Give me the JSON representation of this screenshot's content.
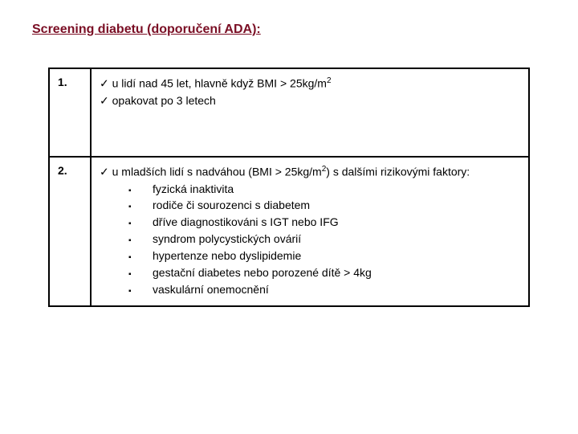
{
  "title": "Screening diabetu (doporučení ADA):",
  "rows": [
    {
      "num": "1.",
      "checks": [
        {
          "pre": "u lidí nad 45 let, hlavně když BMI > 25kg/m",
          "sup": "2",
          "post": ""
        },
        {
          "pre": "opakovat po 3 letech",
          "sup": "",
          "post": ""
        }
      ],
      "subs": []
    },
    {
      "num": "2.",
      "checks": [
        {
          "pre": "u mladších lidí s nadváhou (BMI > 25kg/m",
          "sup": "2",
          "post": ") s dalšími rizikovými faktory:"
        }
      ],
      "subs": [
        "fyzická inaktivita",
        "rodiče či sourozenci s diabetem",
        "dříve diagnostikováni s IGT nebo IFG",
        "syndrom polycystických ovárií",
        "hypertenze nebo dyslipidemie",
        "gestační diabetes nebo porozené dítě > 4kg",
        "vaskulární onemocnění"
      ]
    }
  ],
  "colors": {
    "title": "#7a0e24",
    "border": "#000000",
    "text": "#000000",
    "background": "#ffffff"
  },
  "glyphs": {
    "check": "✓",
    "square": "▪"
  }
}
